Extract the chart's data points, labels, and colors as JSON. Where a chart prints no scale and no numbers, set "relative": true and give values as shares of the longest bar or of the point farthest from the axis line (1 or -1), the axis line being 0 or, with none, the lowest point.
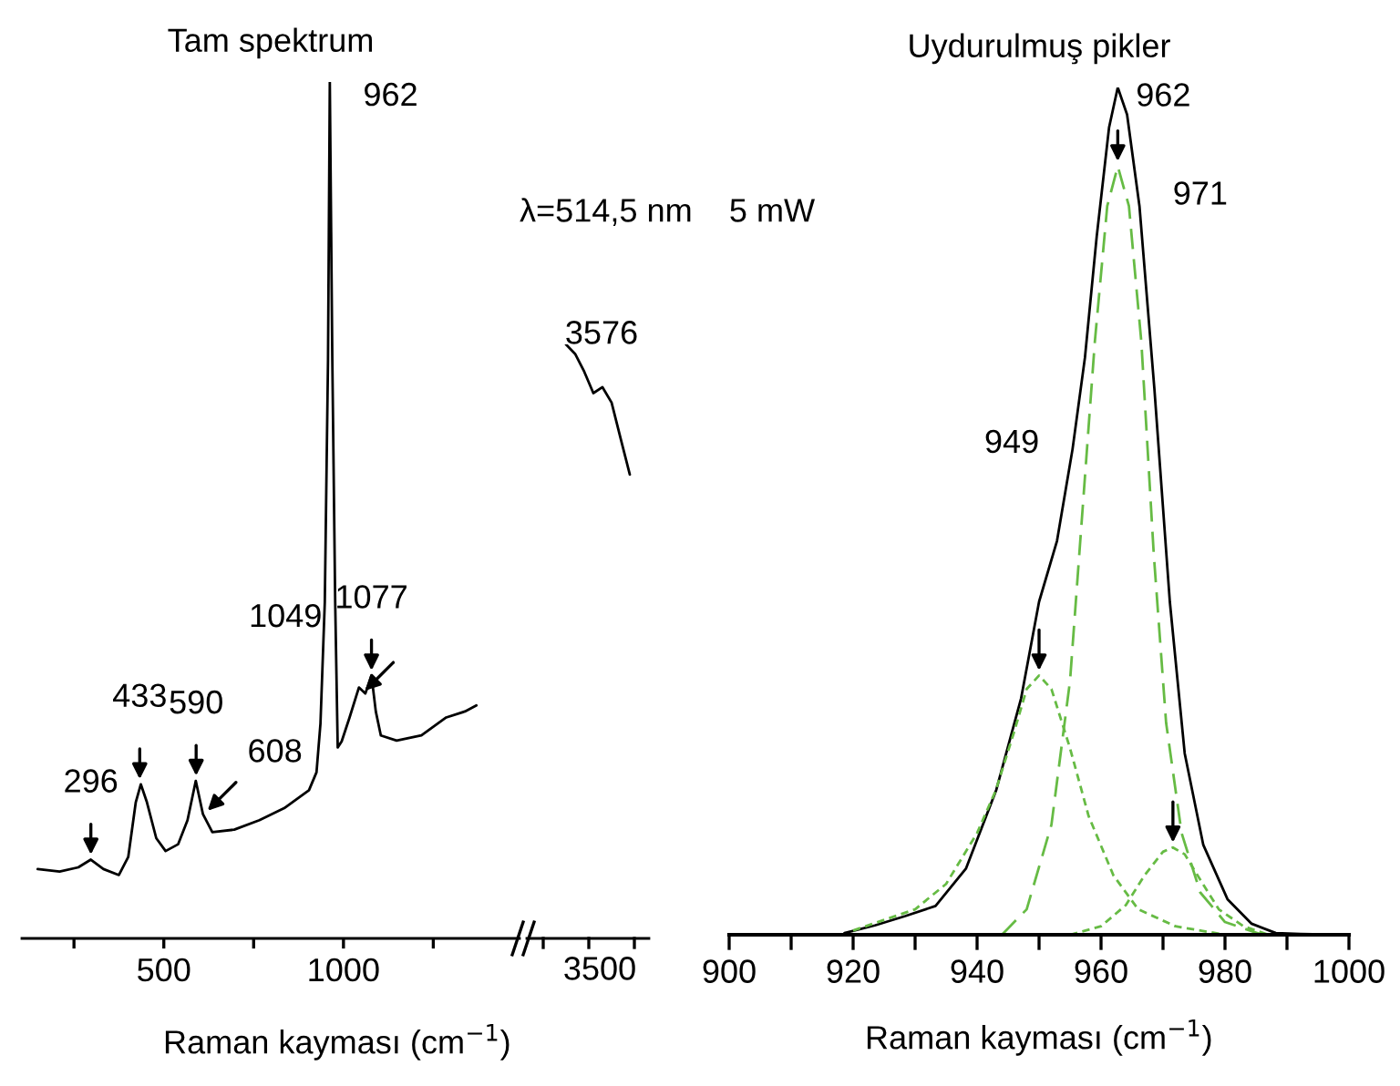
{
  "chart_data": [
    {
      "type": "line",
      "title": "Tam spektrum",
      "xlabel": "Raman kayması (cm$^{−1}$)",
      "relative": true,
      "xlim": [
        105,
        1490
      ],
      "xticks": [
        {
          "value": 250,
          "label": null
        },
        500,
        {
          "value": 750,
          "label": null
        },
        1000,
        {
          "value": 1250,
          "label": null
        }
      ],
      "series": [
        {
          "color": "#000000",
          "x": [
            149,
            210,
            262,
            297,
            332,
            375,
            401,
            422,
            436,
            453,
            479,
            505,
            540,
            566,
            589,
            609,
            635,
            696,
            766,
            835,
            904,
            925,
            936,
            948,
            957,
            962,
            969,
            977,
            984,
            995,
            1017,
            1043,
            1061,
            1078,
            1090,
            1104,
            1148,
            1217,
            1286,
            1338,
            1370
          ],
          "values": [
            0.081,
            0.078,
            0.083,
            0.092,
            0.081,
            0.074,
            0.095,
            0.159,
            0.18,
            0.159,
            0.117,
            0.102,
            0.11,
            0.138,
            0.184,
            0.145,
            0.124,
            0.127,
            0.138,
            0.152,
            0.173,
            0.194,
            0.251,
            0.392,
            0.675,
            1,
            0.675,
            0.392,
            0.223,
            0.23,
            0.258,
            0.293,
            0.286,
            0.307,
            0.265,
            0.237,
            0.231,
            0.237,
            0.258,
            0.265,
            0.272
          ]
        }
      ],
      "annotations": [
        {
          "text": "296",
          "x": 297,
          "y": 0.092
        },
        {
          "text": "433",
          "x": 433,
          "y": 0.18
        },
        {
          "text": "590",
          "x": 590,
          "y": 0.184
        },
        {
          "text": "608",
          "x": 612,
          "y": 0.145
        },
        {
          "text": "1049",
          "x": 1050,
          "y": 0.285
        },
        {
          "text": "1077",
          "x": 1078,
          "y": 0.307
        },
        {
          "text": "962",
          "x": 962,
          "y": 1
        },
        "λ=514,5 nm    5 mW"
      ]
    },
    {
      "type": "line",
      "relative": true,
      "categories": [
        null,
        null,
        null,
        null,
        null,
        null,
        null,
        null
      ],
      "series": [
        {
          "color": "#000000",
          "values": [
            1,
            0.984,
            0.954,
            0.918,
            0.928,
            0.902,
            0.841,
            0.781
          ]
        }
      ],
      "annotations": [
        "3576",
        "3500"
      ]
    },
    {
      "type": "line",
      "title": "Uydurulmuş pikler",
      "xlabel": "Raman kayması (cm$^{−1}$)",
      "relative": true,
      "xlim": [
        900,
        1000
      ],
      "xticks": [
        900,
        {
          "value": 910,
          "label": null
        },
        920,
        {
          "value": 930,
          "label": null
        },
        940,
        {
          "value": 950,
          "label": null
        },
        960,
        {
          "value": 970,
          "label": null
        },
        980,
        {
          "value": 990,
          "label": null
        },
        1000
      ],
      "series": [
        {
          "color": "#000000",
          "line_style": "solid",
          "x": [
            918.6,
            923.5,
            928.4,
            933.3,
            938.2,
            943.1,
            947.1,
            950.0,
            952.9,
            955.4,
            957.4,
            959.3,
            961.3,
            962.7,
            964.2,
            966.2,
            968.6,
            971.1,
            973.5,
            976.5,
            980.4,
            984.3,
            988.2,
            992.2,
            998
          ],
          "values": [
            0.002,
            0.011,
            0.022,
            0.034,
            0.078,
            0.171,
            0.279,
            0.393,
            0.465,
            0.573,
            0.681,
            0.824,
            0.953,
            1,
            0.968,
            0.86,
            0.645,
            0.393,
            0.214,
            0.106,
            0.042,
            0.013,
            0.002,
            0.001,
            0
          ]
        },
        {
          "color": "#66bb44",
          "line_style": "dotted",
          "x": [
            920,
            930,
            935,
            940,
            943,
            946,
            948,
            950,
            952,
            955,
            958,
            962,
            966,
            972,
            980
          ],
          "values": [
            0.005,
            0.03,
            0.06,
            0.12,
            0.17,
            0.24,
            0.29,
            0.306,
            0.29,
            0.22,
            0.14,
            0.07,
            0.03,
            0.01,
            0
          ]
        },
        {
          "color": "#66bb44",
          "line_style": "dashed",
          "x": [
            944,
            948,
            952,
            955,
            957,
            959,
            961,
            962.7,
            964.5,
            966.5,
            968.5,
            970.5,
            973,
            976,
            980,
            986
          ],
          "values": [
            0,
            0.03,
            0.13,
            0.3,
            0.5,
            0.7,
            0.86,
            0.907,
            0.86,
            0.7,
            0.45,
            0.25,
            0.12,
            0.05,
            0.015,
            0
          ]
        },
        {
          "color": "#66bb44",
          "line_style": "dotted",
          "x": [
            955,
            960,
            964,
            967,
            970,
            971.6,
            973.5,
            976,
            979,
            983,
            987
          ],
          "values": [
            0,
            0.01,
            0.035,
            0.07,
            0.098,
            0.103,
            0.095,
            0.065,
            0.03,
            0.01,
            0
          ]
        }
      ],
      "annotations": [
        {
          "text": "962",
          "x": 962.7,
          "y": 1
        },
        {
          "text": "949",
          "x": 955.4,
          "y": 0.573
        },
        {
          "text": "971",
          "x": 966.2,
          "y": 0.86
        }
      ]
    }
  ]
}
